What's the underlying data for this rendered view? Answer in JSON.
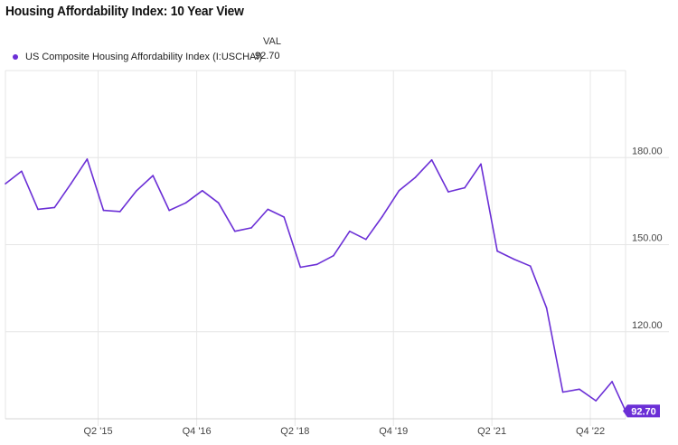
{
  "header": {
    "title": "Housing Affordability Index: 10 Year View"
  },
  "legend": {
    "column_header": "VAL",
    "entries": [
      {
        "name": "US Composite Housing Affordability Index (I:USCHAI)",
        "value": "92.70"
      }
    ]
  },
  "colors": {
    "series": "#6b2fd6",
    "grid": "#e6e6e6",
    "badge_text": "#ffffff"
  },
  "chart_data": {
    "type": "line",
    "title": "Housing Affordability Index: 10 Year View",
    "xlabel": "",
    "ylabel": "",
    "ylim": [
      90,
      210
    ],
    "y_ticks": [
      120,
      150,
      180
    ],
    "y_tick_labels": [
      "120.00",
      "150.00",
      "180.00"
    ],
    "x_ticks": [
      {
        "x": "2015-06-01",
        "label": "Q2 '15"
      },
      {
        "x": "2016-12-01",
        "label": "Q4 '16"
      },
      {
        "x": "2018-06-01",
        "label": "Q2 '18"
      },
      {
        "x": "2019-12-01",
        "label": "Q4 '19"
      },
      {
        "x": "2021-06-01",
        "label": "Q2 '21"
      },
      {
        "x": "2022-12-01",
        "label": "Q4 '22"
      }
    ],
    "x_range": [
      "2014-01-01",
      "2023-06-15"
    ],
    "grid": true,
    "legend_position": "top-left",
    "last_value_label": "92.70",
    "series": [
      {
        "name": "US Composite Housing Affordability Index (I:USCHAI)",
        "points": [
          {
            "x": "2014-01-01",
            "y": 171.0
          },
          {
            "x": "2014-04-01",
            "y": 175.3
          },
          {
            "x": "2014-07-01",
            "y": 162.2
          },
          {
            "x": "2014-10-01",
            "y": 162.8
          },
          {
            "x": "2015-01-01",
            "y": 171.0
          },
          {
            "x": "2015-04-01",
            "y": 179.5
          },
          {
            "x": "2015-07-01",
            "y": 161.8
          },
          {
            "x": "2015-10-01",
            "y": 161.4
          },
          {
            "x": "2016-01-01",
            "y": 168.6
          },
          {
            "x": "2016-04-01",
            "y": 173.8
          },
          {
            "x": "2016-07-01",
            "y": 161.8
          },
          {
            "x": "2016-10-01",
            "y": 164.4
          },
          {
            "x": "2017-01-01",
            "y": 168.6
          },
          {
            "x": "2017-04-01",
            "y": 164.4
          },
          {
            "x": "2017-07-01",
            "y": 154.6
          },
          {
            "x": "2017-10-01",
            "y": 155.8
          },
          {
            "x": "2018-01-01",
            "y": 162.2
          },
          {
            "x": "2018-04-01",
            "y": 159.5
          },
          {
            "x": "2018-07-01",
            "y": 142.2
          },
          {
            "x": "2018-10-01",
            "y": 143.2
          },
          {
            "x": "2019-01-01",
            "y": 146.2
          },
          {
            "x": "2019-04-01",
            "y": 154.6
          },
          {
            "x": "2019-07-01",
            "y": 151.8
          },
          {
            "x": "2019-10-01",
            "y": 159.8
          },
          {
            "x": "2020-01-01",
            "y": 168.6
          },
          {
            "x": "2020-04-01",
            "y": 173.2
          },
          {
            "x": "2020-07-01",
            "y": 179.2
          },
          {
            "x": "2020-10-01",
            "y": 168.2
          },
          {
            "x": "2021-01-01",
            "y": 169.6
          },
          {
            "x": "2021-04-01",
            "y": 177.8
          },
          {
            "x": "2021-07-01",
            "y": 147.8
          },
          {
            "x": "2021-10-01",
            "y": 145.0
          },
          {
            "x": "2022-01-01",
            "y": 142.6
          },
          {
            "x": "2022-04-01",
            "y": 128.2
          },
          {
            "x": "2022-07-01",
            "y": 99.2
          },
          {
            "x": "2022-10-01",
            "y": 100.2
          },
          {
            "x": "2023-01-01",
            "y": 96.2
          },
          {
            "x": "2023-04-01",
            "y": 102.8
          },
          {
            "x": "2023-06-15",
            "y": 92.7
          }
        ]
      }
    ]
  }
}
